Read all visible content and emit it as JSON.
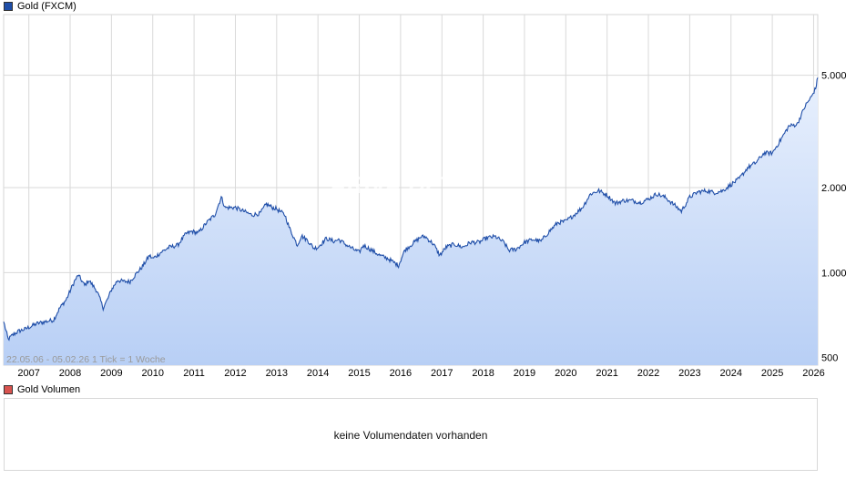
{
  "colors": {
    "series_line": "#1f4ea8",
    "area_top": "#e8f0fd",
    "area_bottom": "#b8cff5",
    "legend_gold": "#1f4ea8",
    "legend_volume": "#d9534f",
    "grid": "#d9d9d9"
  },
  "legend": {
    "main": "Gold (FXCM)",
    "volume": "Gold Volumen"
  },
  "range_info": "22.05.06 - 05.02.26   1 Tick = 1 Woche",
  "watermark": "ARIVA.DE",
  "volume_message": "keine Volumendaten vorhanden",
  "chart_data": {
    "type": "area",
    "title": "Gold (FXCM)",
    "y_scale": "log",
    "ylim": [
      470,
      8200
    ],
    "xlim": [
      2006.39,
      2026.1
    ],
    "y_ticks": [
      {
        "value": 500,
        "label": "500"
      },
      {
        "value": 1000,
        "label": "1.000"
      },
      {
        "value": 2000,
        "label": "2.000"
      },
      {
        "value": 5000,
        "label": "5.000"
      }
    ],
    "x_ticks": [
      2007,
      2008,
      2009,
      2010,
      2011,
      2012,
      2013,
      2014,
      2015,
      2016,
      2017,
      2018,
      2019,
      2020,
      2021,
      2022,
      2023,
      2024,
      2025,
      2026
    ],
    "grid": true,
    "legend_position": "top-left",
    "series": [
      {
        "name": "Gold (FXCM)",
        "x": [
          2006.39,
          2006.45,
          2006.5,
          2006.6,
          2006.75,
          2006.9,
          2007.0,
          2007.2,
          2007.4,
          2007.6,
          2007.75,
          2007.9,
          2008.0,
          2008.1,
          2008.2,
          2008.35,
          2008.45,
          2008.55,
          2008.65,
          2008.8,
          2008.9,
          2009.0,
          2009.15,
          2009.3,
          2009.45,
          2009.6,
          2009.75,
          2009.92,
          2010.0,
          2010.2,
          2010.4,
          2010.6,
          2010.8,
          2010.95,
          2011.1,
          2011.3,
          2011.5,
          2011.66,
          2011.75,
          2011.85,
          2012.0,
          2012.2,
          2012.4,
          2012.6,
          2012.75,
          2012.9,
          2013.0,
          2013.2,
          2013.3,
          2013.5,
          2013.6,
          2013.75,
          2013.9,
          2014.0,
          2014.2,
          2014.4,
          2014.5,
          2014.7,
          2014.9,
          2015.0,
          2015.1,
          2015.3,
          2015.5,
          2015.7,
          2015.95,
          2016.1,
          2016.3,
          2016.5,
          2016.6,
          2016.8,
          2016.95,
          2017.1,
          2017.3,
          2017.5,
          2017.7,
          2017.9,
          2018.1,
          2018.3,
          2018.5,
          2018.62,
          2018.8,
          2019.0,
          2019.2,
          2019.4,
          2019.6,
          2019.8,
          2020.0,
          2020.2,
          2020.4,
          2020.6,
          2020.8,
          2021.0,
          2021.2,
          2021.4,
          2021.6,
          2021.8,
          2022.0,
          2022.2,
          2022.4,
          2022.6,
          2022.8,
          2023.0,
          2023.2,
          2023.4,
          2023.6,
          2023.8,
          2024.0,
          2024.2,
          2024.4,
          2024.6,
          2024.8,
          2025.0,
          2025.2,
          2025.4,
          2025.6,
          2025.8,
          2025.95,
          2026.05,
          2026.1
        ],
        "y": [
          670,
          620,
          580,
          600,
          620,
          630,
          640,
          660,
          670,
          680,
          750,
          800,
          860,
          930,
          980,
          900,
          940,
          900,
          860,
          750,
          800,
          870,
          940,
          930,
          930,
          990,
          1050,
          1150,
          1120,
          1180,
          1230,
          1250,
          1370,
          1400,
          1380,
          1500,
          1600,
          1850,
          1700,
          1700,
          1700,
          1650,
          1600,
          1620,
          1750,
          1700,
          1680,
          1600,
          1450,
          1250,
          1350,
          1300,
          1220,
          1230,
          1320,
          1290,
          1310,
          1250,
          1200,
          1180,
          1250,
          1200,
          1150,
          1120,
          1060,
          1200,
          1270,
          1340,
          1340,
          1260,
          1150,
          1230,
          1260,
          1230,
          1280,
          1280,
          1330,
          1340,
          1280,
          1200,
          1210,
          1280,
          1310,
          1290,
          1400,
          1500,
          1520,
          1600,
          1700,
          1900,
          1950,
          1880,
          1760,
          1800,
          1800,
          1770,
          1820,
          1900,
          1850,
          1750,
          1650,
          1850,
          1930,
          1950,
          1920,
          1950,
          2050,
          2150,
          2350,
          2450,
          2650,
          2650,
          2950,
          3300,
          3350,
          3900,
          4200,
          4500,
          4900
        ]
      }
    ]
  }
}
